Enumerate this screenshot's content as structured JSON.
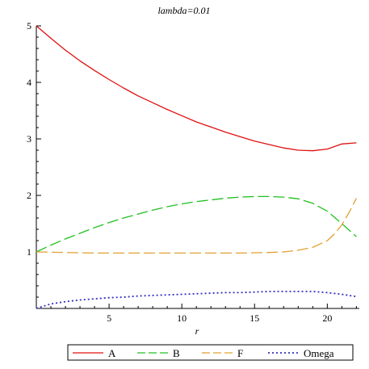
{
  "chart_data": {
    "type": "line",
    "title": "lambda=0.01",
    "xlabel": "r",
    "ylabel": "",
    "xlim": [
      0,
      22.2
    ],
    "ylim": [
      0,
      5
    ],
    "x_ticks": [
      5,
      10,
      15,
      20
    ],
    "y_ticks": [
      1,
      2,
      3,
      4,
      5
    ],
    "grid": false,
    "legend_position": "bottom",
    "series": [
      {
        "name": "A",
        "color": "#e01010",
        "dash": "solid",
        "x": [
          0,
          1,
          2,
          3,
          4,
          5,
          6,
          7,
          8,
          9,
          10,
          11,
          12,
          13,
          14,
          15,
          16,
          17,
          18,
          19,
          20,
          21,
          22
        ],
        "y": [
          5.0,
          4.78,
          4.57,
          4.38,
          4.21,
          4.05,
          3.9,
          3.76,
          3.64,
          3.52,
          3.41,
          3.3,
          3.21,
          3.12,
          3.04,
          2.96,
          2.9,
          2.84,
          2.8,
          2.79,
          2.82,
          2.91,
          2.93
        ]
      },
      {
        "name": "B",
        "color": "#20c020",
        "dash": "long",
        "x": [
          0,
          1,
          2,
          3,
          4,
          5,
          6,
          7,
          8,
          9,
          10,
          11,
          12,
          13,
          14,
          15,
          16,
          17,
          18,
          19,
          20,
          21,
          22
        ],
        "y": [
          1.0,
          1.12,
          1.23,
          1.33,
          1.43,
          1.52,
          1.6,
          1.67,
          1.74,
          1.8,
          1.85,
          1.89,
          1.92,
          1.95,
          1.97,
          1.98,
          1.98,
          1.97,
          1.94,
          1.86,
          1.72,
          1.5,
          1.27
        ]
      },
      {
        "name": "F",
        "color": "#e0a030",
        "dash": "long",
        "x": [
          0,
          2,
          4,
          6,
          8,
          10,
          12,
          14,
          16,
          17,
          18,
          19,
          20,
          20.5,
          21,
          21.5,
          22
        ],
        "y": [
          1.0,
          0.99,
          0.98,
          0.98,
          0.98,
          0.98,
          0.98,
          0.98,
          0.99,
          1.0,
          1.03,
          1.08,
          1.2,
          1.32,
          1.48,
          1.7,
          1.95
        ]
      },
      {
        "name": "Omega",
        "color": "#3030c0",
        "dash": "dotted",
        "x": [
          0,
          1,
          2,
          3,
          4,
          5,
          6,
          7,
          8,
          9,
          10,
          11,
          12,
          13,
          14,
          15,
          16,
          17,
          18,
          19,
          20,
          21,
          22
        ],
        "y": [
          0.0,
          0.08,
          0.12,
          0.15,
          0.17,
          0.19,
          0.2,
          0.22,
          0.23,
          0.24,
          0.25,
          0.26,
          0.27,
          0.28,
          0.28,
          0.29,
          0.3,
          0.3,
          0.3,
          0.3,
          0.28,
          0.25,
          0.21
        ]
      }
    ]
  }
}
